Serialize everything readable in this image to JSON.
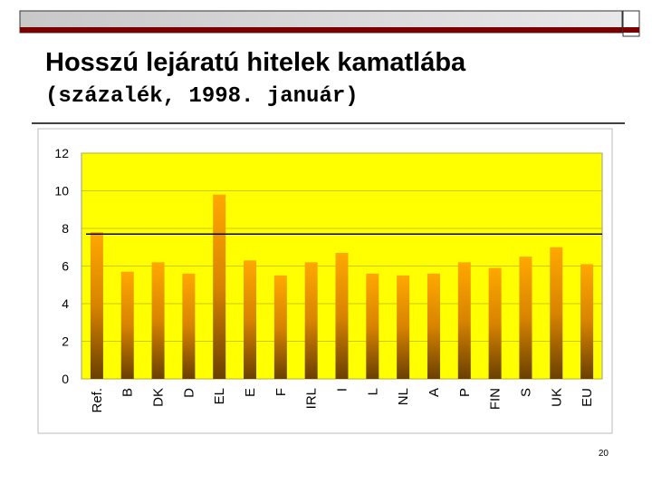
{
  "slide": {
    "title": "Hosszú lejáratú hitelek kamatlába",
    "subtitle": "(százalék, 1998. január)",
    "page_number": "20"
  },
  "chart_data": {
    "type": "bar",
    "categories": [
      "Ref.",
      "B",
      "DK",
      "D",
      "EL",
      "E",
      "F",
      "IRL",
      "I",
      "L",
      "NL",
      "A",
      "P",
      "FIN",
      "S",
      "UK",
      "EU"
    ],
    "values": [
      7.8,
      5.7,
      6.2,
      5.6,
      9.8,
      6.3,
      5.5,
      6.2,
      6.7,
      5.6,
      5.5,
      5.6,
      6.2,
      5.9,
      6.5,
      7.0,
      6.1
    ],
    "color": "#f5a000",
    "reference_line": 7.7,
    "ylim": [
      0,
      12
    ],
    "yticks": [
      0,
      2,
      4,
      6,
      8,
      10,
      12
    ],
    "grid": true
  }
}
